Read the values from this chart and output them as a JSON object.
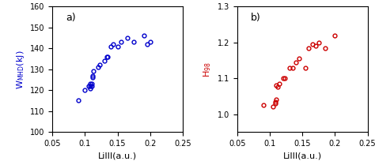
{
  "panel_a": {
    "x": [
      0.09,
      0.1,
      0.105,
      0.108,
      0.108,
      0.108,
      0.11,
      0.11,
      0.112,
      0.112,
      0.113,
      0.12,
      0.122,
      0.13,
      0.133,
      0.135,
      0.14,
      0.143,
      0.15,
      0.155,
      0.165,
      0.175,
      0.19,
      0.195,
      0.2
    ],
    "y": [
      115,
      120,
      122,
      121,
      122,
      123,
      122,
      123,
      126,
      127,
      129,
      131,
      132,
      134,
      136,
      136,
      141,
      142,
      141,
      143,
      145,
      143,
      146,
      142,
      143
    ],
    "color": "#0000CC",
    "xlabel": "LiIII(a.u.)",
    "ylabel": "W$_\\mathregular{MHD}$(kJ)",
    "xlim": [
      0.05,
      0.25
    ],
    "ylim": [
      100,
      160
    ],
    "xticks": [
      0.05,
      0.1,
      0.15,
      0.2,
      0.25
    ],
    "yticks": [
      100,
      110,
      120,
      130,
      140,
      150,
      160
    ],
    "label": "a)"
  },
  "panel_b": {
    "x": [
      0.09,
      0.105,
      0.108,
      0.108,
      0.109,
      0.11,
      0.112,
      0.115,
      0.12,
      0.123,
      0.13,
      0.135,
      0.14,
      0.145,
      0.155,
      0.16,
      0.165,
      0.17,
      0.175,
      0.185,
      0.2
    ],
    "y": [
      1.025,
      1.02,
      1.03,
      1.035,
      1.04,
      1.08,
      1.075,
      1.085,
      1.1,
      1.1,
      1.13,
      1.13,
      1.145,
      1.155,
      1.13,
      1.185,
      1.195,
      1.19,
      1.2,
      1.185,
      1.22
    ],
    "color": "#CC0000",
    "xlabel": "LiIII(a.u.)",
    "ylabel": "H$_\\mathregular{98}$",
    "xlim": [
      0.05,
      0.25
    ],
    "ylim": [
      0.95,
      1.3
    ],
    "xticks": [
      0.05,
      0.1,
      0.15,
      0.2,
      0.25
    ],
    "yticks": [
      1.0,
      1.1,
      1.2,
      1.3
    ],
    "label": "b)"
  },
  "marker": "o",
  "markersize": 3.5,
  "markerfacecolor": "none",
  "markeredgewidth": 1.0,
  "spine_color": "black",
  "tick_color": "black",
  "label_fontsize": 8,
  "tick_fontsize": 7,
  "annot_fontsize": 9
}
